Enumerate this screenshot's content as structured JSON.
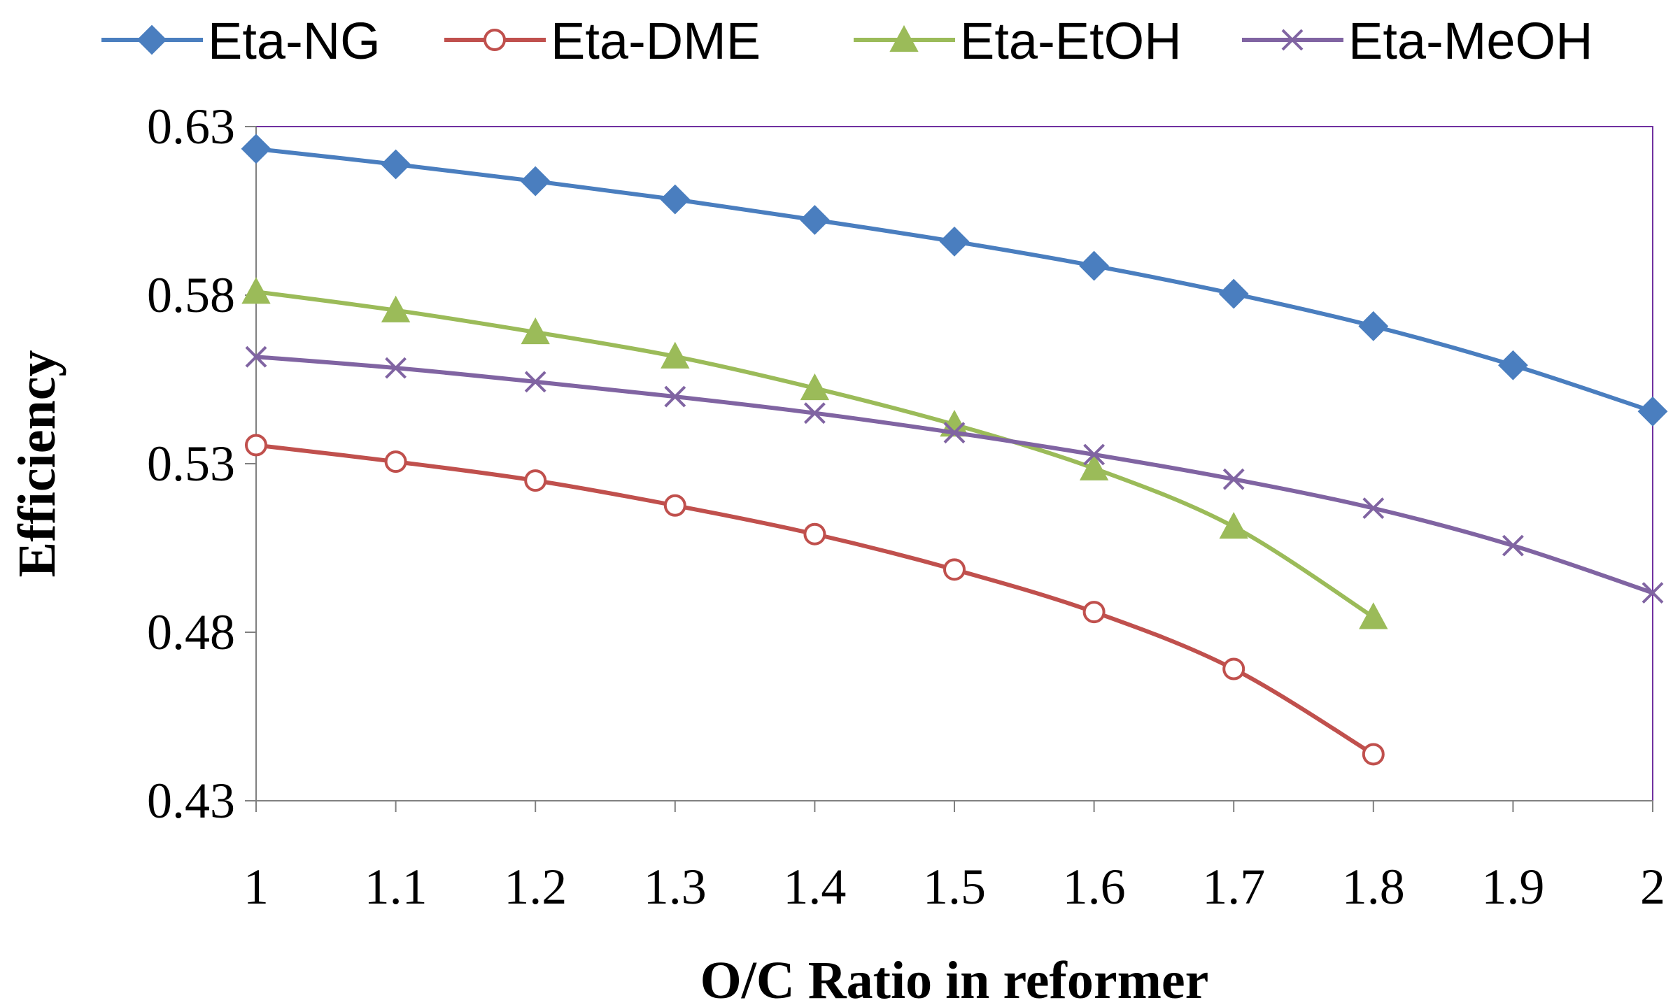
{
  "chart_data": {
    "type": "line",
    "title": "",
    "xlabel": "O/C Ratio in reformer",
    "ylabel": "Efficiency",
    "xlim": [
      1,
      2
    ],
    "ylim": [
      0.43,
      0.63
    ],
    "x_ticks": [
      1,
      1.1,
      1.2,
      1.3,
      1.4,
      1.5,
      1.6,
      1.7,
      1.8,
      1.9,
      2
    ],
    "x_tick_labels": [
      "1",
      "1.1",
      "1.2",
      "1.3",
      "1.4",
      "1.5",
      "1.6",
      "1.7",
      "1.8",
      "1.9",
      "2"
    ],
    "y_ticks": [
      0.43,
      0.48,
      0.53,
      0.58,
      0.63
    ],
    "y_tick_labels": [
      "0.43",
      "0.48",
      "0.53",
      "0.58",
      "0.63"
    ],
    "grid": false,
    "legend_position": "top",
    "series": [
      {
        "name": "Eta-NG",
        "color": "#4a7ebf",
        "marker": "diamond",
        "x": [
          1,
          1.1,
          1.2,
          1.3,
          1.4,
          1.5,
          1.6,
          1.7,
          1.8,
          1.9,
          2
        ],
        "values": [
          0.6234,
          0.6188,
          0.6138,
          0.6084,
          0.6023,
          0.5959,
          0.5887,
          0.5804,
          0.5708,
          0.5592,
          0.5455
        ]
      },
      {
        "name": "Eta-DME",
        "color": "#c0504d",
        "marker": "circle",
        "x": [
          1,
          1.1,
          1.2,
          1.3,
          1.4,
          1.5,
          1.6,
          1.7,
          1.8
        ],
        "values": [
          0.5355,
          0.5306,
          0.525,
          0.5176,
          0.5091,
          0.4986,
          0.486,
          0.4691,
          0.4438
        ]
      },
      {
        "name": "Eta-EtOH",
        "color": "#9bbb59",
        "marker": "triangle",
        "x": [
          1,
          1.1,
          1.2,
          1.3,
          1.4,
          1.5,
          1.6,
          1.7,
          1.8
        ],
        "values": [
          0.581,
          0.5755,
          0.569,
          0.5618,
          0.5524,
          0.5416,
          0.5286,
          0.5113,
          0.4845
        ]
      },
      {
        "name": "Eta-MeOH",
        "color": "#8064a2",
        "marker": "x",
        "x": [
          1,
          1.1,
          1.2,
          1.3,
          1.4,
          1.5,
          1.6,
          1.7,
          1.8,
          1.9,
          2
        ],
        "values": [
          0.5617,
          0.5584,
          0.5543,
          0.5499,
          0.545,
          0.5392,
          0.5327,
          0.5254,
          0.5168,
          0.5057,
          0.4917
        ]
      }
    ]
  }
}
